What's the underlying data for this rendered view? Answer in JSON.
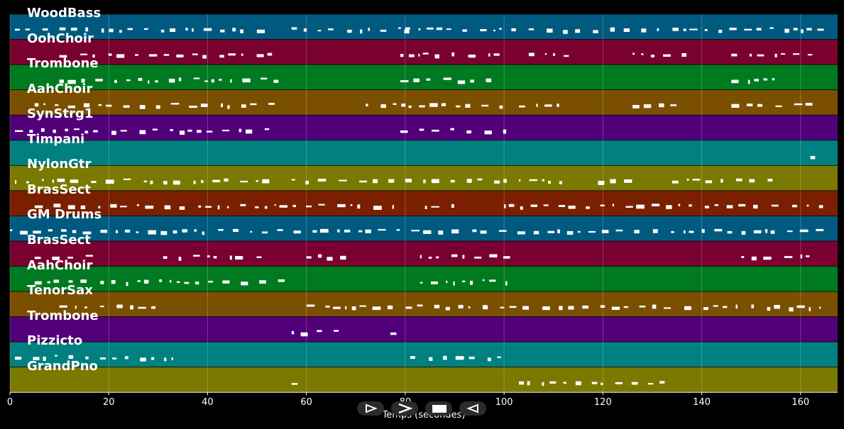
{
  "xaxis": {
    "label": "Temps (secondes)",
    "ticks": [
      "0",
      "20",
      "40",
      "60",
      "80",
      "100",
      "120",
      "140",
      "160"
    ],
    "range": [
      0,
      167.5
    ]
  },
  "tracks": [
    {
      "name": "WoodBass",
      "color": "#005a80"
    },
    {
      "name": "OohChoir",
      "color": "#7a0030"
    },
    {
      "name": "Trombone",
      "color": "#007a20"
    },
    {
      "name": "AahChoir",
      "color": "#7a5000"
    },
    {
      "name": "SynStrg1",
      "color": "#52007a"
    },
    {
      "name": "Timpani",
      "color": "#008080"
    },
    {
      "name": "NylonGtr",
      "color": "#7a7a00"
    },
    {
      "name": "BrasSect",
      "color": "#7a2000"
    },
    {
      "name": "GM Drums",
      "color": "#005a80"
    },
    {
      "name": "BrasSect",
      "color": "#7a0030"
    },
    {
      "name": "AahChoir",
      "color": "#007a20"
    },
    {
      "name": "TenorSax",
      "color": "#7a5000"
    },
    {
      "name": "Trombone",
      "color": "#52007a"
    },
    {
      "name": "Pizzicto",
      "color": "#008080"
    },
    {
      "name": "GrandPno",
      "color": "#7a7a00"
    }
  ],
  "controls": [
    {
      "name": "play-forward-button",
      "icon": "play-outline-icon"
    },
    {
      "name": "next-button",
      "icon": "chevron-right-icon"
    },
    {
      "name": "stop-button",
      "icon": "stop-icon"
    },
    {
      "name": "play-backward-button",
      "icon": "play-reverse-icon"
    }
  ]
}
